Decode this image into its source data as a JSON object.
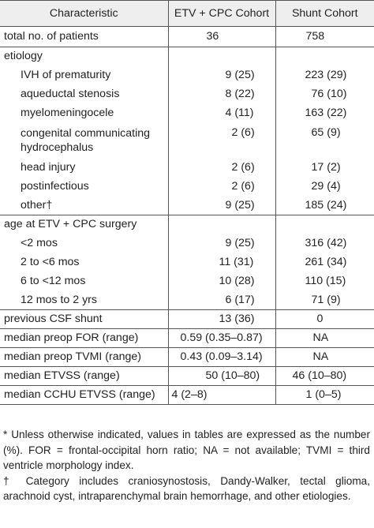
{
  "table": {
    "headers": [
      "Characteristic",
      "ETV + CPC Cohort",
      "Shunt Cohort"
    ],
    "rows": [
      {
        "label": "total no. of patients",
        "etv": "36",
        "shunt": "758"
      },
      {
        "label": "etiology",
        "etv": "",
        "shunt": ""
      },
      {
        "label": "IVH of prematurity",
        "etv": "9 (25)",
        "shunt": "223 (29)"
      },
      {
        "label": "aqueductal stenosis",
        "etv": "8 (22)",
        "shunt": "76 (10)"
      },
      {
        "label": "myelomeningocele",
        "etv": "4 (11)",
        "shunt": "163 (22)"
      },
      {
        "label_line1": "congenital communicating",
        "label_line2": "hydrocephalus",
        "etv": "2 (6)",
        "shunt": "65 (9)"
      },
      {
        "label": "head injury",
        "etv": "2 (6)",
        "shunt": "17 (2)"
      },
      {
        "label": "postinfectious",
        "etv": "2 (6)",
        "shunt": "29 (4)"
      },
      {
        "label": "other†",
        "etv": "9 (25)",
        "shunt": "185 (24)"
      },
      {
        "label": "age at ETV + CPC surgery",
        "etv": "",
        "shunt": ""
      },
      {
        "label": "<2 mos",
        "etv": "9 (25)",
        "shunt": "316 (42)"
      },
      {
        "label": "2 to <6 mos",
        "etv": "11 (31)",
        "shunt": "261 (34)"
      },
      {
        "label": "6 to <12 mos",
        "etv": "10 (28)",
        "shunt": "110 (15)"
      },
      {
        "label": "12 mos to 2 yrs",
        "etv": "6 (17)",
        "shunt": "71 (9)"
      },
      {
        "label": "previous CSF shunt",
        "etv": "13 (36)",
        "shunt": "0"
      },
      {
        "label": "median preop FOR (range)",
        "etv": "0.59 (0.35–0.87)",
        "shunt": "NA"
      },
      {
        "label": "median preop TVMI (range)",
        "etv": "0.43 (0.09–3.14)",
        "shunt": "NA"
      },
      {
        "label": "median ETVSS (range)",
        "etv": "50 (10–80)",
        "shunt": "46 (10–80)"
      },
      {
        "label": "median CCHU ETVSS (range)",
        "etv": "4 (2–8)",
        "shunt": "1 (0–5)"
      }
    ]
  },
  "footnotes": {
    "star": "* Unless otherwise indicated, values in tables are expressed as the number (%). FOR = frontal-occipital horn ratio; NA = not available; TVMI = third ventricle morphology index.",
    "dagger": "† Category includes craniosynostosis, Dandy-Walker, tectal glioma, arachnoid cyst, intraparenchymal brain hemorrhage, and other etiologies."
  }
}
